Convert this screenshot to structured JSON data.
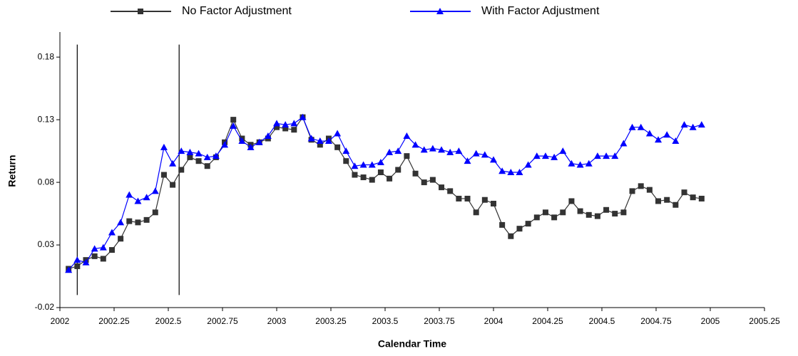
{
  "chart_data": {
    "type": "line",
    "xlabel": "Calendar Time",
    "ylabel": "Return",
    "xlim": [
      2002,
      2005.25
    ],
    "xticks": [
      2002,
      2002.25,
      2002.5,
      2002.75,
      2003,
      2003.25,
      2003.5,
      2003.75,
      2004,
      2004.25,
      2004.5,
      2004.75,
      2005,
      2005.25
    ],
    "ylim": [
      -0.02,
      0.2
    ],
    "yticks": [
      -0.02,
      0.03,
      0.08,
      0.13,
      0.18
    ],
    "grid": false,
    "legend": "top",
    "vlines": [
      2002.08,
      2002.55
    ],
    "vline_range": [
      -0.01,
      0.19
    ],
    "x": [
      2002.04,
      2002.08,
      2002.12,
      2002.16,
      2002.2,
      2002.24,
      2002.28,
      2002.32,
      2002.36,
      2002.4,
      2002.44,
      2002.48,
      2002.52,
      2002.56,
      2002.6,
      2002.64,
      2002.68,
      2002.72,
      2002.76,
      2002.8,
      2002.84,
      2002.88,
      2002.92,
      2002.96,
      2003,
      2003.04,
      2003.08,
      2003.12,
      2003.16,
      2003.2,
      2003.24,
      2003.28,
      2003.32,
      2003.36,
      2003.4,
      2003.44,
      2003.48,
      2003.52,
      2003.56,
      2003.6,
      2003.64,
      2003.68,
      2003.72,
      2003.76,
      2003.8,
      2003.84,
      2003.88,
      2003.92,
      2003.96,
      2004,
      2004.04,
      2004.08,
      2004.12,
      2004.16,
      2004.2,
      2004.24,
      2004.28,
      2004.32,
      2004.36,
      2004.4,
      2004.44,
      2004.48,
      2004.52,
      2004.56,
      2004.6,
      2004.64,
      2004.68,
      2004.72,
      2004.76,
      2004.8,
      2004.84,
      2004.88,
      2004.92,
      2004.96
    ],
    "series": [
      {
        "name": "No Factor Adjustment",
        "color": "#333333",
        "marker": "square",
        "values": [
          0.011,
          0.013,
          0.018,
          0.021,
          0.019,
          0.026,
          0.035,
          0.049,
          0.048,
          0.05,
          0.056,
          0.086,
          0.078,
          0.09,
          0.1,
          0.097,
          0.093,
          0.1,
          0.112,
          0.13,
          0.115,
          0.11,
          0.112,
          0.115,
          0.124,
          0.123,
          0.122,
          0.132,
          0.114,
          0.11,
          0.115,
          0.108,
          0.097,
          0.086,
          0.084,
          0.082,
          0.088,
          0.083,
          0.09,
          0.101,
          0.087,
          0.08,
          0.082,
          0.076,
          0.073,
          0.067,
          0.067,
          0.056,
          0.066,
          0.063,
          0.046,
          0.037,
          0.043,
          0.047,
          0.052,
          0.056,
          0.052,
          0.056,
          0.065,
          0.057,
          0.054,
          0.053,
          0.058,
          0.055,
          0.056,
          0.073,
          0.077,
          0.074,
          0.065,
          0.066,
          0.062,
          0.072,
          0.068,
          0.067
        ]
      },
      {
        "name": "With Factor Adjustment",
        "color": "#0000ff",
        "marker": "triangle",
        "values": [
          0.01,
          0.018,
          0.016,
          0.027,
          0.028,
          0.04,
          0.048,
          0.07,
          0.065,
          0.068,
          0.073,
          0.108,
          0.095,
          0.105,
          0.104,
          0.103,
          0.1,
          0.101,
          0.11,
          0.125,
          0.113,
          0.108,
          0.112,
          0.117,
          0.127,
          0.126,
          0.127,
          0.132,
          0.115,
          0.113,
          0.113,
          0.119,
          0.105,
          0.093,
          0.094,
          0.094,
          0.096,
          0.104,
          0.105,
          0.117,
          0.11,
          0.106,
          0.107,
          0.106,
          0.104,
          0.105,
          0.097,
          0.103,
          0.102,
          0.098,
          0.089,
          0.088,
          0.088,
          0.094,
          0.101,
          0.101,
          0.1,
          0.105,
          0.095,
          0.094,
          0.095,
          0.101,
          0.101,
          0.101,
          0.111,
          0.124,
          0.124,
          0.119,
          0.114,
          0.118,
          0.113,
          0.126,
          0.124,
          0.126
        ]
      }
    ]
  }
}
